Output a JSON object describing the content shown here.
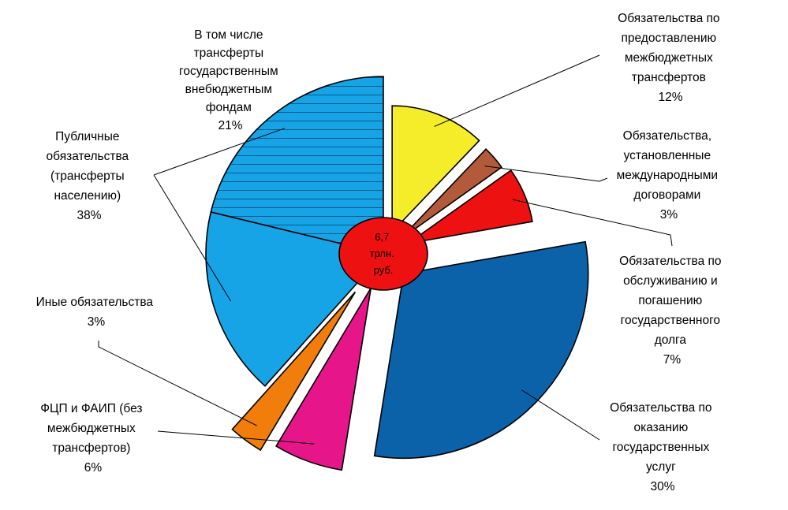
{
  "chart_data": {
    "type": "pie",
    "title": "",
    "center_label": [
      "6,7",
      "трлн.",
      "руб."
    ],
    "legend": "none",
    "slices": [
      {
        "label": [
          "Обязательства по",
          "предоставлению",
          "межбюджетных",
          "трансфертов"
        ],
        "value_label": "12%",
        "value": 12,
        "color": "#f5ec2a",
        "pattern": "none"
      },
      {
        "label": [
          "Обязательства,",
          "установленные",
          "международными",
          "договорами"
        ],
        "value_label": "3%",
        "value": 3,
        "color": "#b35a3a",
        "pattern": "none"
      },
      {
        "label": [
          "Обязательства по",
          "обслуживанию и",
          "погашению",
          "государственного",
          "долга"
        ],
        "value_label": "7%",
        "value": 7,
        "color": "#ee1111",
        "pattern": "none"
      },
      {
        "label": [
          "Обязательства по",
          "оказанию",
          "государственных",
          "услуг"
        ],
        "value_label": "30%",
        "value": 30,
        "color": "#0b62a8",
        "pattern": "none"
      },
      {
        "label": [],
        "value_label": "",
        "value": 6,
        "color": "#e6158a",
        "pattern": "none"
      },
      {
        "label": [],
        "value_label": "",
        "value": 3,
        "color": "#f07d0c",
        "pattern": "none"
      },
      {
        "label": [],
        "value_label": "",
        "value": 17,
        "color": "#17a4e6",
        "pattern": "none"
      },
      {
        "label": [
          "В том числе",
          "трансферты",
          "государственным",
          "внебюджетным",
          "фондам"
        ],
        "value_label": "21%",
        "value": 21,
        "color": "#17a4e6",
        "pattern": "horizontal-stripes"
      }
    ],
    "callouts": [
      {
        "label": [
          "Публичные",
          "обязательства",
          "(трансферты",
          "населению)"
        ],
        "value_label": "38%"
      },
      {
        "label": [
          "Иные обязательства"
        ],
        "value_label": "3%"
      },
      {
        "label": [
          "ФЦП и ФАИП (без",
          "межбюджетных",
          "трансфертов)"
        ],
        "value_label": "6%"
      }
    ]
  }
}
